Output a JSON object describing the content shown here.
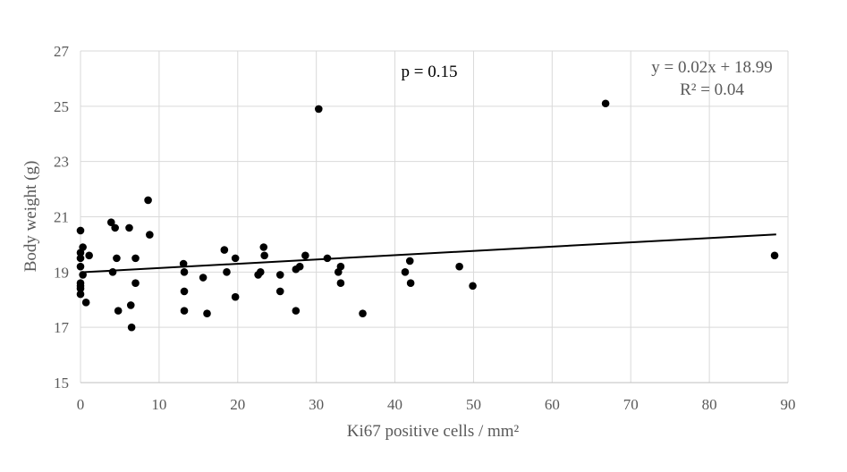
{
  "chart_data": {
    "type": "scatter",
    "title": "",
    "xlabel": "Ki67 positive cells / mm²",
    "ylabel": "Body weight (g)",
    "xlim": [
      0,
      90
    ],
    "ylim": [
      15,
      27
    ],
    "x_ticks": [
      0,
      10,
      20,
      30,
      40,
      50,
      60,
      70,
      80,
      90
    ],
    "y_ticks": [
      15,
      17,
      19,
      21,
      23,
      25,
      27
    ],
    "grid": true,
    "legend": "none",
    "point_color": "#000000",
    "trendline": {
      "slope": 0.0155,
      "intercept": 18.99,
      "x_range": [
        0,
        88.5
      ],
      "color": "#000000"
    },
    "annotations": {
      "p_value": "p = 0.15",
      "equation": "y = 0.02x + 18.99",
      "r_squared": "R² = 0.04"
    },
    "points": [
      {
        "x": 0,
        "y": 20.5
      },
      {
        "x": 0,
        "y": 19.7
      },
      {
        "x": 0,
        "y": 19.5
      },
      {
        "x": 0,
        "y": 19.2
      },
      {
        "x": 0,
        "y": 18.6
      },
      {
        "x": 0,
        "y": 18.5
      },
      {
        "x": 0,
        "y": 18.4
      },
      {
        "x": 0,
        "y": 18.2
      },
      {
        "x": 0.3,
        "y": 19.9
      },
      {
        "x": 0.3,
        "y": 18.9
      },
      {
        "x": 0.7,
        "y": 17.9
      },
      {
        "x": 1.1,
        "y": 19.6
      },
      {
        "x": 3.9,
        "y": 20.8
      },
      {
        "x": 4.1,
        "y": 19.0
      },
      {
        "x": 4.4,
        "y": 20.6
      },
      {
        "x": 4.6,
        "y": 19.5
      },
      {
        "x": 4.8,
        "y": 17.6
      },
      {
        "x": 6.2,
        "y": 20.6
      },
      {
        "x": 6.4,
        "y": 17.8
      },
      {
        "x": 6.5,
        "y": 17.0
      },
      {
        "x": 7.0,
        "y": 19.5
      },
      {
        "x": 7.0,
        "y": 18.6
      },
      {
        "x": 8.6,
        "y": 21.6
      },
      {
        "x": 8.8,
        "y": 20.35
      },
      {
        "x": 13.1,
        "y": 19.3
      },
      {
        "x": 13.2,
        "y": 19.0
      },
      {
        "x": 13.2,
        "y": 18.3
      },
      {
        "x": 13.2,
        "y": 17.6
      },
      {
        "x": 15.6,
        "y": 18.8
      },
      {
        "x": 16.1,
        "y": 17.5
      },
      {
        "x": 18.3,
        "y": 19.8
      },
      {
        "x": 18.6,
        "y": 19.0
      },
      {
        "x": 19.7,
        "y": 19.5
      },
      {
        "x": 19.7,
        "y": 18.1
      },
      {
        "x": 22.6,
        "y": 18.9
      },
      {
        "x": 22.9,
        "y": 19.0
      },
      {
        "x": 23.3,
        "y": 19.9
      },
      {
        "x": 23.4,
        "y": 19.6
      },
      {
        "x": 25.4,
        "y": 18.9
      },
      {
        "x": 25.4,
        "y": 18.3
      },
      {
        "x": 27.4,
        "y": 19.1
      },
      {
        "x": 27.4,
        "y": 17.6
      },
      {
        "x": 27.9,
        "y": 19.2
      },
      {
        "x": 28.6,
        "y": 19.6
      },
      {
        "x": 30.3,
        "y": 24.9
      },
      {
        "x": 31.4,
        "y": 19.5
      },
      {
        "x": 32.8,
        "y": 19.0
      },
      {
        "x": 33.1,
        "y": 19.2
      },
      {
        "x": 33.1,
        "y": 18.6
      },
      {
        "x": 35.9,
        "y": 17.5
      },
      {
        "x": 41.3,
        "y": 19.0
      },
      {
        "x": 41.9,
        "y": 19.4
      },
      {
        "x": 42.0,
        "y": 18.6
      },
      {
        "x": 48.2,
        "y": 19.2
      },
      {
        "x": 49.9,
        "y": 18.5
      },
      {
        "x": 66.8,
        "y": 25.1
      },
      {
        "x": 88.3,
        "y": 19.6
      }
    ]
  }
}
